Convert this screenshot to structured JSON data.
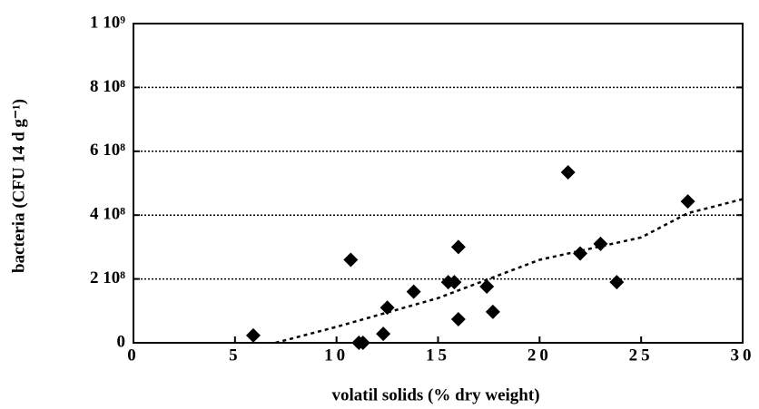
{
  "chart_data": {
    "type": "scatter",
    "x_label": "volatil solids (% dry weight)",
    "y_label": "bacteria (CFU 14 d g⁻¹)",
    "xlim": [
      0,
      30
    ],
    "xticks": [
      0,
      5,
      10,
      15,
      20,
      25,
      30
    ],
    "ylim": [
      0,
      1000000000
    ],
    "yticks": [
      0,
      {
        "value": 200000000,
        "label": "2 10⁸"
      },
      {
        "value": 400000000,
        "label": "4 10⁸"
      },
      {
        "value": 600000000,
        "label": "6 10⁸"
      },
      {
        "value": 800000000,
        "label": "8 10⁸"
      },
      {
        "value": 1000000000,
        "label": "1 10⁹"
      }
    ],
    "grid": true,
    "series": [
      {
        "color": "#000000",
        "marker": "diamond",
        "x": [
          5.9,
          10.7,
          11.1,
          11.3,
          12.3,
          12.5,
          13.8,
          15.5,
          15.8,
          16.0,
          16.0,
          17.4,
          17.7,
          21.4,
          22.0,
          23.0,
          23.8,
          27.3
        ],
        "values": [
          23000000,
          260000000,
          0,
          0,
          28000000,
          110000000,
          160000000,
          190000000,
          190000000,
          300000000,
          74000000,
          176000000,
          97000000,
          534000000,
          280000000,
          310000000,
          190000000,
          443000000
        ]
      },
      {
        "color": "#000000",
        "line_style": "dotted",
        "x": [
          7,
          10,
          15,
          20,
          25,
          27.3,
          30
        ],
        "values": [
          0,
          50000000,
          140000000,
          260000000,
          330000000,
          406000000,
          450000000
        ]
      }
    ]
  }
}
